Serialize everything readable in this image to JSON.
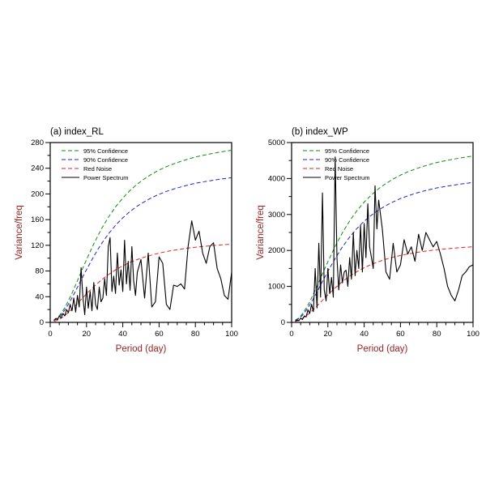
{
  "page": {
    "background": "#ffffff"
  },
  "chart_data": [
    {
      "type": "line",
      "title": "(a) index_RL",
      "xlabel": "Period (day)",
      "ylabel": "Variance/freq",
      "xlim": [
        0,
        100
      ],
      "ylim": [
        0,
        280
      ],
      "xticks": [
        0,
        20,
        40,
        60,
        80,
        100
      ],
      "yticks": [
        0,
        40,
        80,
        120,
        160,
        200,
        240,
        280
      ],
      "x_minor_step": 5,
      "y_minor_step": 20,
      "axis_label_color": "#992222",
      "tick_label_color": "#000000",
      "legend_position": "upper-left",
      "grid": false,
      "series": [
        {
          "name": "95% Confidence",
          "color": "#0f8a0f",
          "dash": "5,3",
          "width": 1,
          "x": [
            2,
            4,
            6,
            8,
            10,
            12,
            14,
            16,
            18,
            20,
            24,
            28,
            32,
            36,
            40,
            44,
            48,
            52,
            56,
            60,
            64,
            68,
            72,
            76,
            80,
            84,
            88,
            92,
            96,
            100
          ],
          "y": [
            3.5,
            7,
            13.9,
            22.7,
            33.4,
            45.5,
            58.3,
            71.5,
            84.7,
            97.7,
            122.3,
            144.3,
            163.5,
            179.7,
            193.6,
            205.5,
            215.4,
            223.7,
            231,
            237.2,
            242.4,
            246.8,
            250.8,
            254.3,
            257.6,
            260,
            262.2,
            264.4,
            266.2,
            268
          ]
        },
        {
          "name": "90% Confidence",
          "color": "#2222cc",
          "dash": "5,3",
          "width": 1,
          "x": [
            2,
            4,
            6,
            8,
            10,
            12,
            14,
            16,
            18,
            20,
            24,
            28,
            32,
            36,
            40,
            44,
            48,
            52,
            56,
            60,
            64,
            68,
            72,
            76,
            80,
            84,
            88,
            92,
            96,
            100
          ],
          "y": [
            3,
            5.9,
            11.7,
            19.1,
            28.1,
            38.3,
            49,
            60.1,
            71.2,
            82.1,
            102.9,
            121.4,
            137.5,
            151.1,
            162.8,
            172.8,
            181.1,
            188.1,
            194.3,
            199.4,
            203.9,
            207.6,
            210.9,
            213.9,
            216.6,
            218.7,
            220.5,
            222.4,
            223.9,
            225.3
          ]
        },
        {
          "name": "Red Noise",
          "color": "#ee2222",
          "dash": "5,3",
          "width": 1,
          "x": [
            2,
            4,
            6,
            8,
            10,
            12,
            14,
            16,
            18,
            20,
            24,
            28,
            32,
            36,
            40,
            44,
            48,
            52,
            56,
            60,
            64,
            68,
            72,
            76,
            80,
            84,
            88,
            92,
            96,
            100
          ],
          "y": [
            1.6,
            3.2,
            6.3,
            10.3,
            15.2,
            20.7,
            26.5,
            32.5,
            38.5,
            44.4,
            55.6,
            65.6,
            74.3,
            81.7,
            88,
            93.4,
            97.9,
            101.7,
            105,
            107.8,
            110.2,
            112.2,
            114,
            115.6,
            117.1,
            118.2,
            119.2,
            120.2,
            121,
            121.8
          ]
        },
        {
          "name": "Power Spectrum",
          "color": "#000000",
          "dash": "",
          "width": 1.1,
          "x": [
            2,
            3,
            4,
            5,
            6,
            7,
            8,
            9,
            10,
            11,
            12,
            13,
            14,
            15,
            16,
            17,
            18,
            19,
            20,
            21,
            22,
            23,
            24,
            25,
            26,
            27,
            28,
            29,
            30,
            31,
            32,
            33,
            34,
            35,
            36,
            37,
            38,
            39,
            40,
            41,
            42,
            43,
            44,
            45,
            46,
            47,
            48,
            50,
            52,
            54,
            56,
            58,
            60,
            62,
            64,
            66,
            68,
            70,
            72,
            74,
            76,
            78,
            80,
            82,
            84,
            86,
            88,
            90,
            92,
            94,
            96,
            98,
            100
          ],
          "y": [
            3,
            6,
            4,
            10,
            7,
            14,
            10,
            20,
            15,
            28,
            18,
            38,
            16,
            42,
            24,
            85,
            40,
            12,
            55,
            22,
            48,
            18,
            62,
            28,
            20,
            55,
            32,
            38,
            68,
            42,
            118,
            132,
            48,
            72,
            45,
            108,
            58,
            82,
            48,
            128,
            60,
            95,
            50,
            118,
            65,
            42,
            78,
            98,
            38,
            108,
            24,
            32,
            102,
            92,
            28,
            20,
            58,
            56,
            60,
            52,
            118,
            158,
            128,
            142,
            108,
            92,
            118,
            124,
            84,
            68,
            42,
            36,
            78
          ]
        }
      ]
    },
    {
      "type": "line",
      "title": "(b) index_WP",
      "xlabel": "Period (day)",
      "ylabel": "Variance/freq",
      "xlim": [
        0,
        100
      ],
      "ylim": [
        0,
        5000
      ],
      "xticks": [
        0,
        20,
        40,
        60,
        80,
        100
      ],
      "yticks": [
        0,
        1000,
        2000,
        3000,
        4000,
        5000
      ],
      "x_minor_step": 5,
      "y_minor_step": 500,
      "axis_label_color": "#992222",
      "tick_label_color": "#000000",
      "legend_position": "upper-left",
      "grid": false,
      "series": [
        {
          "name": "95% Confidence",
          "color": "#0f8a0f",
          "dash": "5,3",
          "width": 1,
          "x": [
            2,
            4,
            6,
            8,
            10,
            12,
            14,
            16,
            18,
            20,
            24,
            28,
            32,
            36,
            40,
            44,
            48,
            52,
            56,
            60,
            64,
            68,
            72,
            76,
            80,
            84,
            88,
            92,
            96,
            100
          ],
          "y": [
            62,
            121,
            238,
            392,
            577,
            785,
            1006,
            1234,
            1462,
            1687,
            2112,
            2492,
            2822,
            3104,
            3344,
            3546,
            3718,
            3863,
            3986,
            4094,
            4184,
            4261,
            4330,
            4389,
            4446,
            4486,
            4528,
            4563,
            4596,
            4624
          ]
        },
        {
          "name": "90% Confidence",
          "color": "#2222cc",
          "dash": "5,3",
          "width": 1,
          "x": [
            2,
            4,
            6,
            8,
            10,
            12,
            14,
            16,
            18,
            20,
            24,
            28,
            32,
            36,
            40,
            44,
            48,
            52,
            56,
            60,
            64,
            68,
            72,
            76,
            80,
            84,
            88,
            92,
            96,
            100
          ],
          "y": [
            52,
            102,
            200,
            330,
            485,
            660,
            846,
            1038,
            1230,
            1419,
            1776,
            2096,
            2374,
            2610,
            2812,
            2982,
            3127,
            3249,
            3352,
            3443,
            3519,
            3583,
            3641,
            3691,
            3739,
            3772,
            3807,
            3837,
            3865,
            3889
          ]
        },
        {
          "name": "Red Noise",
          "color": "#ee2222",
          "dash": "5,3",
          "width": 1,
          "x": [
            2,
            4,
            6,
            8,
            10,
            12,
            14,
            16,
            18,
            20,
            24,
            28,
            32,
            36,
            40,
            44,
            48,
            52,
            56,
            60,
            64,
            68,
            72,
            76,
            80,
            84,
            88,
            92,
            96,
            100
          ],
          "y": [
            28,
            55,
            108,
            178,
            262,
            357,
            457,
            561,
            665,
            767,
            960,
            1133,
            1283,
            1411,
            1520,
            1612,
            1690,
            1756,
            1812,
            1861,
            1902,
            1937,
            1968,
            1995,
            2021,
            2039,
            2058,
            2074,
            2089,
            2102
          ]
        },
        {
          "name": "Power Spectrum",
          "color": "#000000",
          "dash": "",
          "width": 1.1,
          "x": [
            2,
            3,
            4,
            5,
            6,
            7,
            8,
            9,
            10,
            11,
            12,
            13,
            14,
            15,
            16,
            17,
            18,
            19,
            20,
            21,
            22,
            23,
            24,
            25,
            26,
            27,
            28,
            29,
            30,
            31,
            32,
            33,
            34,
            35,
            36,
            37,
            38,
            39,
            40,
            41,
            42,
            43,
            44,
            45,
            46,
            47,
            48,
            50,
            52,
            54,
            56,
            58,
            60,
            62,
            64,
            66,
            68,
            70,
            72,
            74,
            76,
            78,
            80,
            82,
            84,
            86,
            88,
            90,
            92,
            94,
            96,
            98,
            100
          ],
          "y": [
            30,
            60,
            45,
            120,
            80,
            180,
            150,
            350,
            250,
            500,
            300,
            1500,
            400,
            2200,
            700,
            3600,
            900,
            600,
            1500,
            800,
            1250,
            700,
            4600,
            1800,
            900,
            1600,
            1100,
            1400,
            1450,
            1000,
            1800,
            1200,
            2500,
            1300,
            2000,
            1500,
            2700,
            1400,
            2750,
            1800,
            3300,
            2100,
            1800,
            1500,
            3800,
            2600,
            3400,
            2600,
            1400,
            1200,
            2200,
            1400,
            1600,
            2300,
            1900,
            2100,
            1700,
            2450,
            2000,
            2500,
            2300,
            2100,
            2250,
            1900,
            1500,
            1000,
            750,
            600,
            900,
            1300,
            1400,
            1550,
            1600
          ]
        }
      ]
    }
  ]
}
